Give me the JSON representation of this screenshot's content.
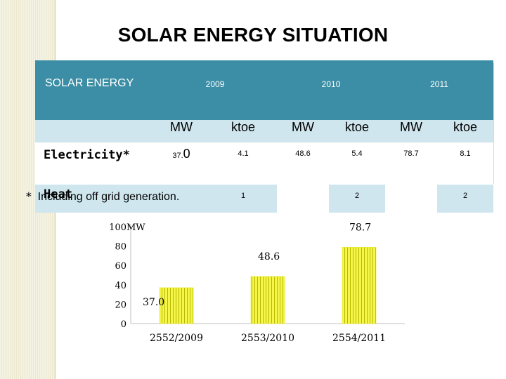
{
  "title": "SOLAR ENERGY SITUATION",
  "table": {
    "header_label": "SOLAR ENERGY",
    "years": [
      "2009",
      "2010",
      "2011"
    ],
    "units": [
      "MW",
      "ktoe",
      "MW",
      "ktoe",
      "MW",
      "ktoe"
    ],
    "rows": [
      {
        "label": "Electricity*",
        "mw_2009_prefix": "37.",
        "mw_2009_suffix": "0",
        "ktoe_2009": "4.1",
        "mw_2010": "48.6",
        "ktoe_2010": "5.4",
        "mw_2011": "78.7",
        "ktoe_2011": "8.1"
      },
      {
        "label": "Heat",
        "mw_2009": "",
        "ktoe_2009": "1",
        "mw_2010": "",
        "ktoe_2010": "2",
        "mw_2011": "",
        "ktoe_2011": "2"
      }
    ]
  },
  "footnote": {
    "marker": "*",
    "text": "Including off grid generation."
  },
  "chart_data": {
    "type": "bar",
    "title": "",
    "unit_label": "MW",
    "categories": [
      "2552/2009",
      "2553/2010",
      "2554/2011"
    ],
    "values": [
      37.0,
      48.6,
      78.7
    ],
    "value_labels": [
      "37.0",
      "48.6",
      "78.7"
    ],
    "yticks": [
      "0",
      "20",
      "40",
      "60",
      "80",
      "100"
    ],
    "ylim": [
      0,
      100
    ],
    "bar_color": "#f5f54a",
    "bar_stripe_color": "#b8b800",
    "grid": false
  }
}
